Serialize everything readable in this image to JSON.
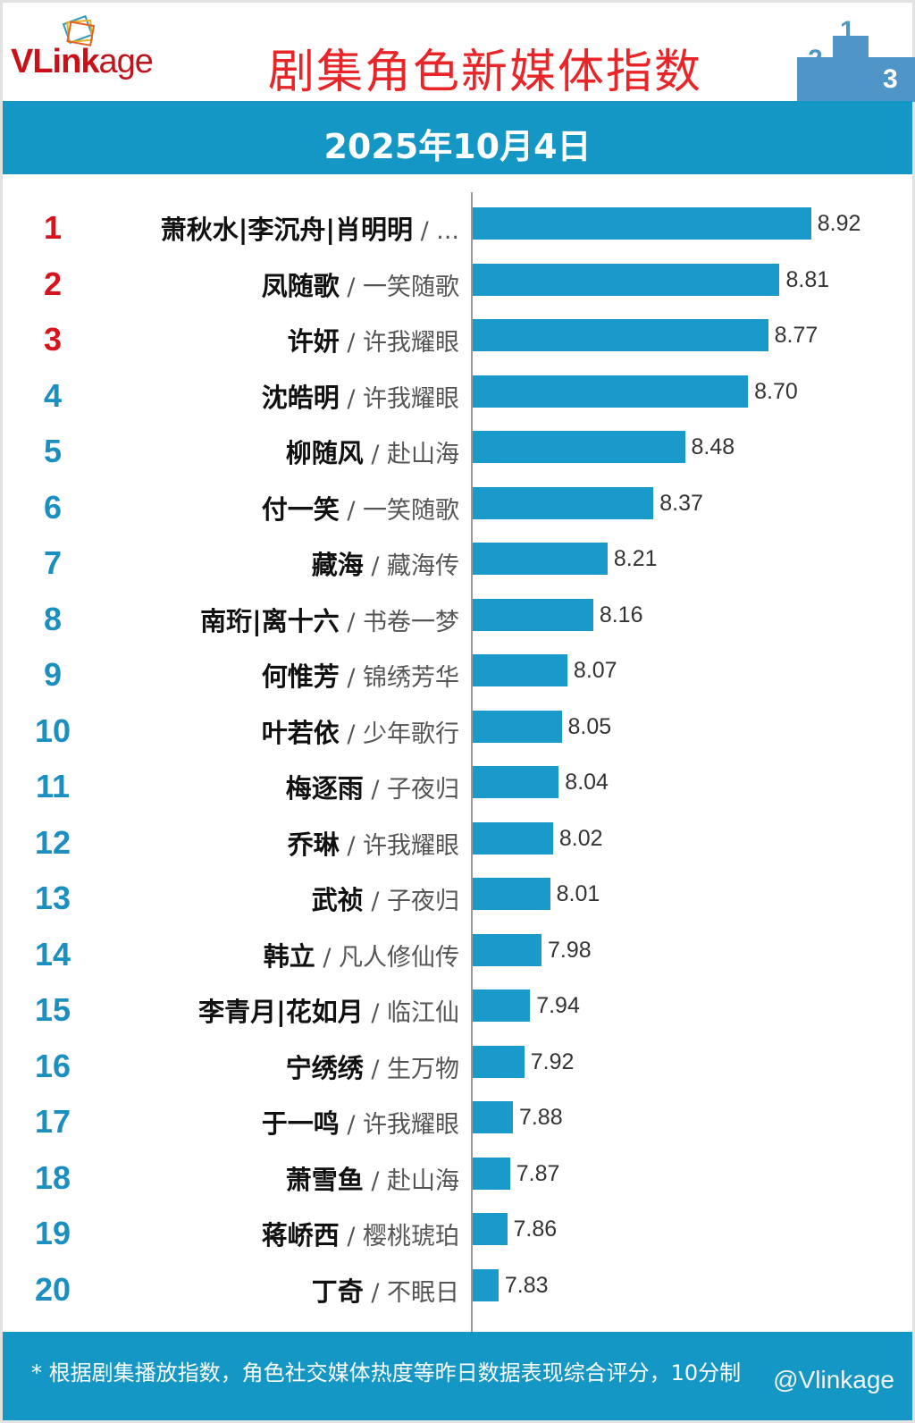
{
  "header": {
    "logo": "VLinkage",
    "title": "剧集角色新媒体指数",
    "date": "2025年10月4日"
  },
  "chart_data": {
    "type": "bar",
    "orientation": "horizontal",
    "title": "剧集角色新媒体指数",
    "subtitle": "2025年10月4日",
    "xlim": [
      7.74,
      9.0
    ],
    "rows": [
      {
        "rank": "1",
        "name": "萧秋水|李沉舟|肖明明",
        "show": "...",
        "value": 8.92
      },
      {
        "rank": "2",
        "name": "凤随歌",
        "show": "一笑随歌",
        "value": 8.81
      },
      {
        "rank": "3",
        "name": "许妍",
        "show": "许我耀眼",
        "value": 8.77
      },
      {
        "rank": "4",
        "name": "沈皓明",
        "show": "许我耀眼",
        "value": 8.7
      },
      {
        "rank": "5",
        "name": "柳随风",
        "show": "赴山海",
        "value": 8.48
      },
      {
        "rank": "6",
        "name": "付一笑",
        "show": "一笑随歌",
        "value": 8.37
      },
      {
        "rank": "7",
        "name": "藏海",
        "show": "藏海传",
        "value": 8.21
      },
      {
        "rank": "8",
        "name": "南珩|离十六",
        "show": "书卷一梦",
        "value": 8.16
      },
      {
        "rank": "9",
        "name": "何惟芳",
        "show": "锦绣芳华",
        "value": 8.07
      },
      {
        "rank": "10",
        "name": "叶若依",
        "show": "少年歌行",
        "value": 8.05
      },
      {
        "rank": "11",
        "name": "梅逐雨",
        "show": "子夜归",
        "value": 8.04
      },
      {
        "rank": "12",
        "name": "乔琳",
        "show": "许我耀眼",
        "value": 8.02
      },
      {
        "rank": "13",
        "name": "武祯",
        "show": "子夜归",
        "value": 8.01
      },
      {
        "rank": "14",
        "name": "韩立",
        "show": "凡人修仙传",
        "value": 7.98
      },
      {
        "rank": "15",
        "name": "李青月|花如月",
        "show": "临江仙",
        "value": 7.94
      },
      {
        "rank": "16",
        "name": "宁绣绣",
        "show": "生万物",
        "value": 7.92
      },
      {
        "rank": "17",
        "name": "于一鸣",
        "show": "许我耀眼",
        "value": 7.88
      },
      {
        "rank": "18",
        "name": "萧雪鱼",
        "show": "赴山海",
        "value": 7.87
      },
      {
        "rank": "19",
        "name": "蒋峤西",
        "show": "樱桃琥珀",
        "value": 7.86
      },
      {
        "rank": "20",
        "name": "丁奇",
        "show": "不眠日",
        "value": 7.83
      }
    ],
    "colors": {
      "bar": "#1a9acb",
      "top_rank": "#d7141e",
      "rank": "#1a8fc0"
    }
  },
  "footer": {
    "note": "* 根据剧集播放指数，角色社交媒体热度等昨日数据表现综合评分，10分制",
    "watermark": "@Vlinkage"
  }
}
